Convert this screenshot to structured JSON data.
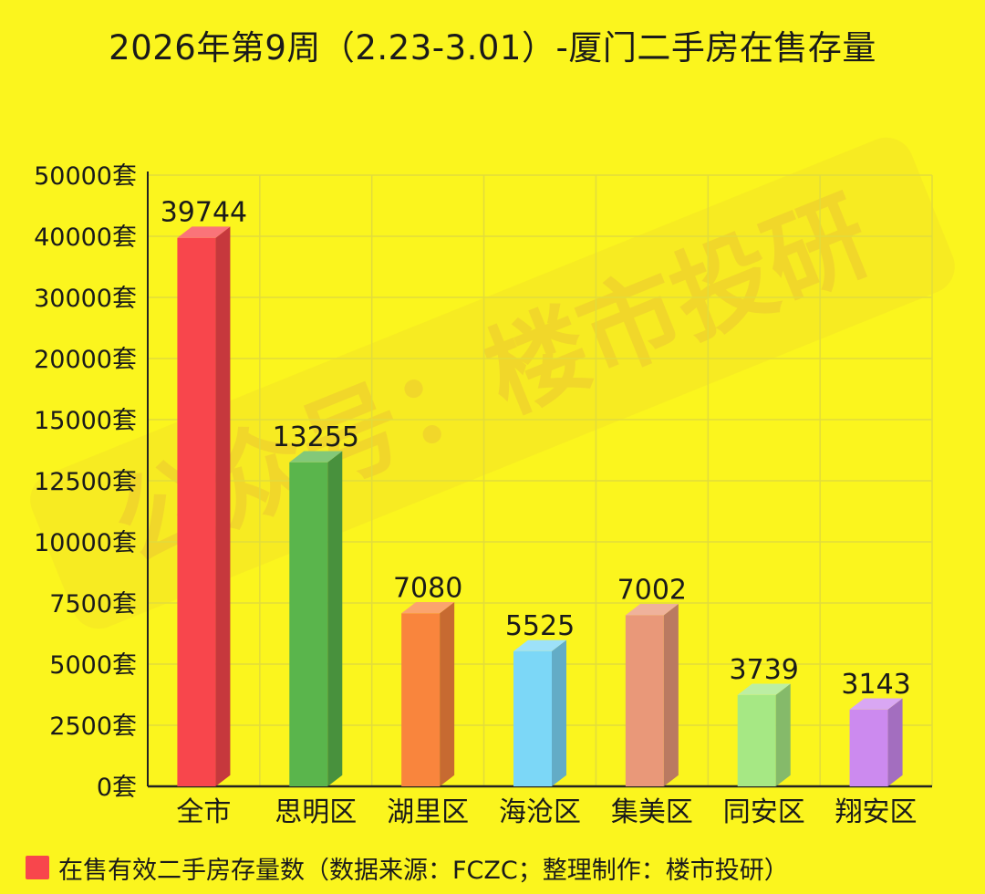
{
  "chart_data": {
    "type": "bar",
    "title": "2026年第9周（2.23-3.01）-厦门二手房在售存量",
    "categories": [
      "全市",
      "思明区",
      "湖里区",
      "海沧区",
      "集美区",
      "同安区",
      "翔安区"
    ],
    "series": [
      {
        "name": "在售有效二手房存量数（数据来源：FCZC；整理制作：楼市投研）",
        "values": [
          39744,
          13255,
          7080,
          5525,
          7002,
          3739,
          3143
        ]
      }
    ],
    "y_ticks": [
      "0套",
      "2500套",
      "5000套",
      "7500套",
      "10000套",
      "12500套",
      "15000套",
      "20000套",
      "30000套",
      "40000套",
      "50000套"
    ],
    "y_tick_values": [
      0,
      2500,
      5000,
      7500,
      10000,
      12500,
      15000,
      20000,
      30000,
      40000,
      50000
    ],
    "y_scale": "piecewise-linear",
    "grid": true,
    "legend_position": "bottom-left",
    "bar_style": "3d",
    "bar_colors": [
      "#f8464c",
      "#5ab54c",
      "#f9853d",
      "#7cd7f7",
      "#e99879",
      "#a6e884",
      "#cc8aef"
    ],
    "background": "#fbf51e"
  },
  "watermark": "公众号：楼市投研"
}
